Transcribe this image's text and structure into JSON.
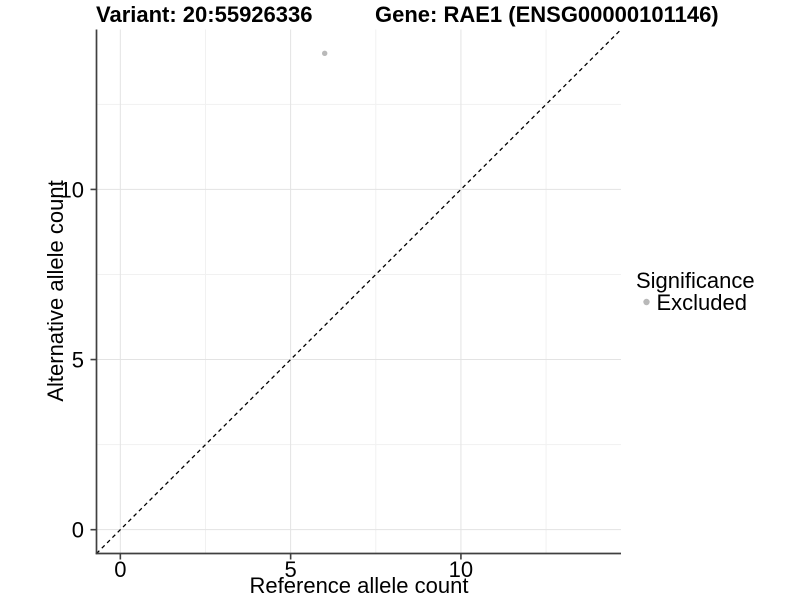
{
  "chart_data": {
    "type": "scatter",
    "title_left": "Variant: 20:55926336",
    "title_right": "Gene: RAE1 (ENSG00000101146)",
    "xlabel": "Reference allele count",
    "ylabel": "Alternative allele count",
    "xlim": [
      -0.7,
      14.7
    ],
    "ylim": [
      -0.7,
      14.7
    ],
    "x_ticks": [
      0,
      5,
      10
    ],
    "y_ticks": [
      0,
      5,
      10
    ],
    "grid": {
      "visible": true,
      "major_x": [
        0,
        5,
        10
      ],
      "major_y": [
        0,
        5,
        10
      ],
      "minor_x": [
        2.5,
        7.5,
        12.5
      ],
      "minor_y": [
        2.5,
        7.5,
        12.5
      ]
    },
    "points": [
      {
        "x": 6,
        "y": 14,
        "significance": "Excluded"
      }
    ],
    "reference_line": {
      "type": "identity",
      "slope": 1,
      "intercept": 0,
      "style": "dashed"
    },
    "legend": {
      "title": "Significance",
      "position": "right",
      "entries": [
        {
          "label": "Excluded",
          "color": "#b9b9b9"
        }
      ]
    },
    "colors": {
      "point": "#b9b9b9",
      "grid_major": "#e3e3e3",
      "grid_minor": "#f1f1f1",
      "axis": "#404040",
      "reference_line": "#000000",
      "background": "#ffffff"
    }
  }
}
